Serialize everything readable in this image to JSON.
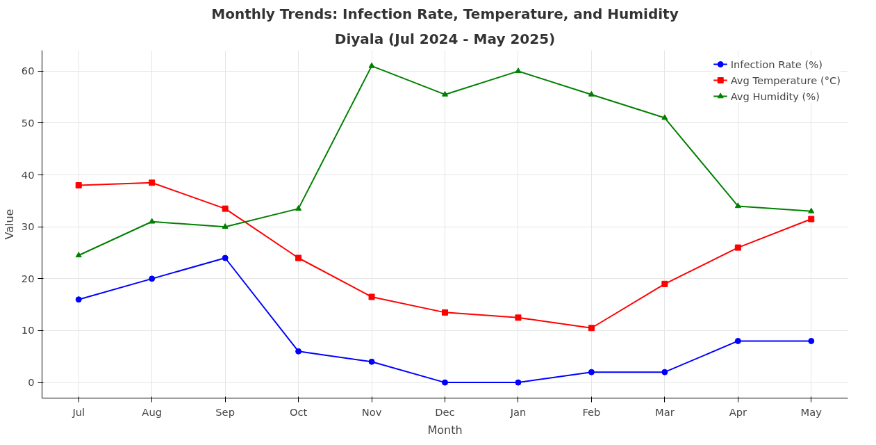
{
  "chart_data": {
    "type": "line",
    "title": "Monthly Trends: Infection Rate, Temperature, and Humidity",
    "subtitle": "Diyala (Jul 2024 - May 2025)",
    "xlabel": "Month",
    "ylabel": "Value",
    "categories": [
      "Jul",
      "Aug",
      "Sep",
      "Oct",
      "Nov",
      "Dec",
      "Jan",
      "Feb",
      "Mar",
      "Apr",
      "May"
    ],
    "series": [
      {
        "name": "Infection Rate (%)",
        "color": "#0000ff",
        "marker": "circle",
        "values": [
          16,
          20,
          24,
          6,
          4,
          0,
          0,
          2,
          2,
          8,
          8
        ]
      },
      {
        "name": "Avg Temperature (°C)",
        "color": "#ff0000",
        "marker": "square",
        "values": [
          38,
          38.5,
          33.5,
          24,
          16.5,
          13.5,
          12.5,
          10.5,
          19,
          26,
          31.5
        ]
      },
      {
        "name": "Avg Humidity (%)",
        "color": "#008000",
        "marker": "triangle",
        "values": [
          24.5,
          31,
          30,
          33.5,
          61,
          55.5,
          60,
          55.5,
          51,
          34,
          33
        ]
      }
    ],
    "ylim": [
      -3,
      64
    ],
    "yticks": [
      0,
      10,
      20,
      30,
      40,
      50,
      60
    ],
    "grid": true,
    "legend": "top right",
    "line_style": "solid"
  }
}
